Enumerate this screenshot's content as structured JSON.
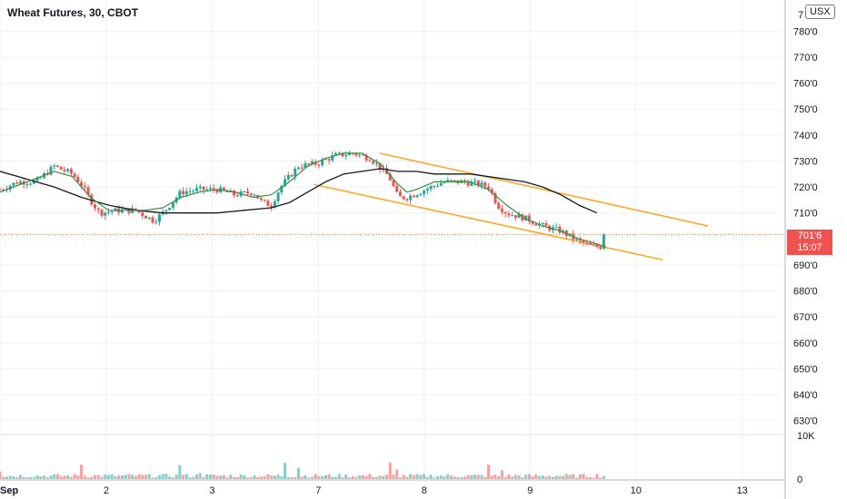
{
  "header": {
    "title": "Wheat Futures, 30, CBOT",
    "currency": "USX"
  },
  "last_price": {
    "value_label": "701'6",
    "countdown": "15:07",
    "value": 701.75
  },
  "colors": {
    "up": "#26a69a",
    "down": "#ef5350",
    "channel": "#ffa726",
    "ma_short": "#388e3c",
    "ma_long": "#131722",
    "price_line": "#f57c3a",
    "grid": "#eef0f3"
  },
  "chart_data": {
    "type": "candlestick",
    "title": "Wheat Futures, 30, CBOT",
    "timeframe": "30",
    "currency": "USX",
    "y_axis": {
      "ticks": [
        "780'0",
        "770'0",
        "760'0",
        "750'0",
        "740'0",
        "730'0",
        "720'0",
        "710'0",
        "690'0",
        "680'0",
        "670'0",
        "660'0",
        "650'0",
        "640'0",
        "630'0"
      ],
      "tick_values": [
        780,
        770,
        760,
        750,
        740,
        730,
        720,
        710,
        690,
        680,
        670,
        660,
        650,
        640,
        630
      ],
      "ylim": [
        625,
        792
      ],
      "partial_top_label": "7"
    },
    "x_axis": {
      "labels": [
        "Sep",
        "2",
        "3",
        "7",
        "8",
        "9",
        "10",
        "13"
      ],
      "label_positions": [
        0,
        23.5,
        46.9,
        70.4,
        93.8,
        117.2,
        140.6,
        164.1
      ],
      "xlim": [
        0,
        172.8
      ]
    },
    "volume_axis": {
      "ticks": [
        "10K",
        "0"
      ],
      "tick_values": [
        10000,
        0
      ],
      "ymax": 10000
    },
    "anchors": [
      [
        0,
        719
      ],
      [
        4,
        722
      ],
      [
        8,
        722
      ],
      [
        12,
        728
      ],
      [
        16,
        725
      ],
      [
        18,
        721
      ],
      [
        20,
        715
      ],
      [
        22,
        710
      ],
      [
        26,
        711
      ],
      [
        30,
        711
      ],
      [
        34,
        707
      ],
      [
        36,
        710
      ],
      [
        40,
        718
      ],
      [
        44,
        719
      ],
      [
        48,
        719
      ],
      [
        52,
        717
      ],
      [
        56,
        718
      ],
      [
        58,
        714
      ],
      [
        60,
        713
      ],
      [
        62,
        720
      ],
      [
        66,
        728
      ],
      [
        70,
        729
      ],
      [
        74,
        732
      ],
      [
        78,
        733
      ],
      [
        82,
        731
      ],
      [
        86,
        724
      ],
      [
        88,
        716
      ],
      [
        90,
        716
      ],
      [
        94,
        719
      ],
      [
        98,
        722
      ],
      [
        102,
        722
      ],
      [
        106,
        721
      ],
      [
        108,
        720
      ],
      [
        110,
        713
      ],
      [
        112,
        710
      ],
      [
        116,
        708
      ],
      [
        120,
        705
      ],
      [
        124,
        703
      ],
      [
        128,
        699
      ],
      [
        131,
        697
      ],
      [
        133,
        697
      ],
      [
        134,
        701.75
      ]
    ],
    "ma_short": [
      [
        0,
        718
      ],
      [
        6,
        722
      ],
      [
        12,
        726
      ],
      [
        16,
        724
      ],
      [
        20,
        716
      ],
      [
        24,
        711
      ],
      [
        28,
        711
      ],
      [
        32,
        711
      ],
      [
        36,
        712
      ],
      [
        40,
        716
      ],
      [
        44,
        718
      ],
      [
        48,
        719
      ],
      [
        52,
        718
      ],
      [
        56,
        716
      ],
      [
        60,
        717
      ],
      [
        64,
        722
      ],
      [
        68,
        728
      ],
      [
        72,
        731
      ],
      [
        76,
        733
      ],
      [
        80,
        733
      ],
      [
        84,
        729
      ],
      [
        88,
        721
      ],
      [
        90,
        718
      ],
      [
        92,
        719
      ],
      [
        96,
        722
      ],
      [
        100,
        722
      ],
      [
        104,
        722
      ],
      [
        108,
        719
      ],
      [
        112,
        713
      ],
      [
        116,
        708
      ],
      [
        120,
        705
      ],
      [
        124,
        703
      ],
      [
        128,
        700
      ],
      [
        132,
        698
      ],
      [
        134,
        697
      ]
    ],
    "ma_long": [
      [
        0,
        726
      ],
      [
        6,
        723
      ],
      [
        12,
        720
      ],
      [
        18,
        716
      ],
      [
        24,
        713
      ],
      [
        30,
        711
      ],
      [
        36,
        710
      ],
      [
        42,
        710
      ],
      [
        48,
        710
      ],
      [
        54,
        711
      ],
      [
        60,
        712
      ],
      [
        64,
        714
      ],
      [
        68,
        718
      ],
      [
        72,
        722
      ],
      [
        76,
        725
      ],
      [
        80,
        726
      ],
      [
        84,
        727
      ],
      [
        88,
        726
      ],
      [
        92,
        726
      ],
      [
        96,
        725
      ],
      [
        100,
        725
      ],
      [
        104,
        725
      ],
      [
        108,
        724
      ],
      [
        112,
        723
      ],
      [
        116,
        722
      ],
      [
        120,
        720
      ],
      [
        124,
        717
      ],
      [
        128,
        713
      ],
      [
        132,
        710
      ]
    ],
    "channel_lines": [
      {
        "from": [
          84,
          733
        ],
        "to": [
          156.5,
          705
        ]
      },
      {
        "from": [
          69.3,
          721
        ],
        "to": [
          146.5,
          692
        ]
      }
    ],
    "volume": [
      {
        "x": 0,
        "v": 1700
      },
      {
        "x": 10,
        "v": 800
      },
      {
        "x": 18,
        "v": 3300
      },
      {
        "x": 40,
        "v": 3200
      },
      {
        "x": 44,
        "v": 1400
      },
      {
        "x": 63,
        "v": 3700
      },
      {
        "x": 66,
        "v": 2600
      },
      {
        "x": 86,
        "v": 3800
      },
      {
        "x": 88,
        "v": 2200
      },
      {
        "x": 108,
        "v": 3300
      },
      {
        "x": 111,
        "v": 2000
      },
      {
        "x": 132,
        "v": 1200
      },
      {
        "x": 134,
        "v": 4100
      }
    ]
  }
}
